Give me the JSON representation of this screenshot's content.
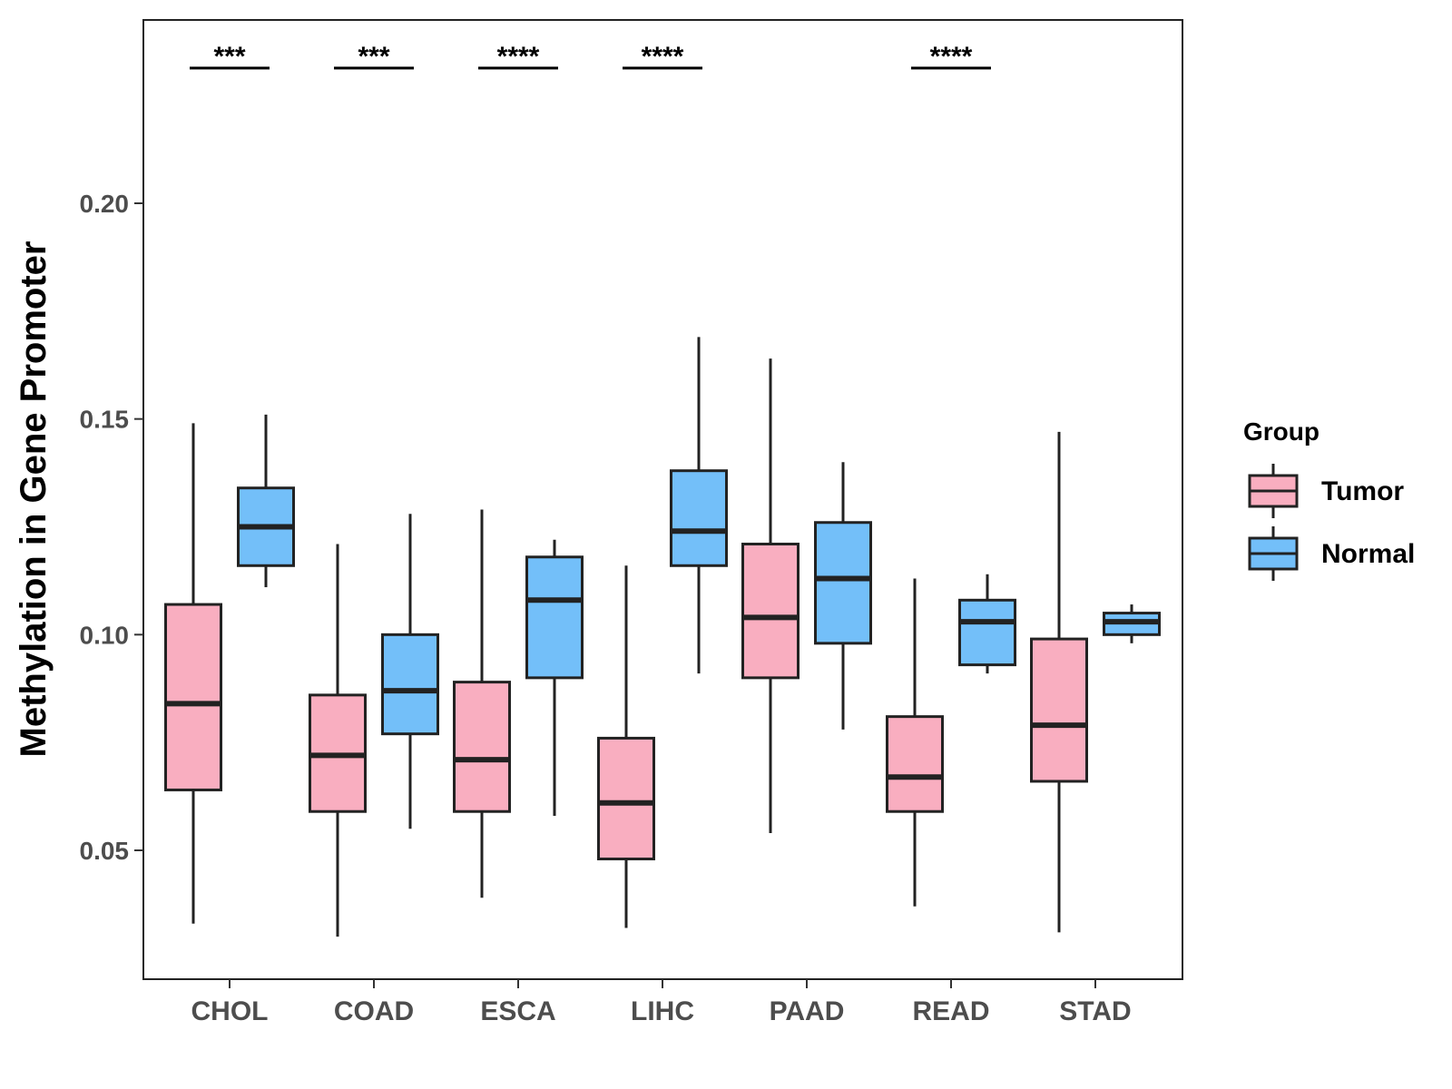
{
  "chart_data": {
    "type": "boxplot",
    "title": "",
    "xlabel": "",
    "ylabel": "Methylation in Gene Promoter",
    "ylim": [
      0.02,
      0.245
    ],
    "yticks": [
      0.05,
      0.1,
      0.15,
      0.2
    ],
    "ytick_labels": [
      "0.05",
      "0.10",
      "0.15",
      "0.20"
    ],
    "categories": [
      "CHOL",
      "COAD",
      "ESCA",
      "LIHC",
      "PAAD",
      "READ",
      "STAD"
    ],
    "legend": {
      "title": "Group",
      "position": "right",
      "entries": [
        {
          "name": "Tumor",
          "color": "#F9AEC0"
        },
        {
          "name": "Normal",
          "color": "#73BFF9"
        }
      ]
    },
    "series": [
      {
        "name": "Tumor",
        "color": "#F9AEC0",
        "boxes": [
          {
            "min": 0.033,
            "q1": 0.064,
            "median": 0.084,
            "q3": 0.107,
            "max": 0.149
          },
          {
            "min": 0.03,
            "q1": 0.059,
            "median": 0.072,
            "q3": 0.086,
            "max": 0.121
          },
          {
            "min": 0.039,
            "q1": 0.059,
            "median": 0.071,
            "q3": 0.089,
            "max": 0.129
          },
          {
            "min": 0.032,
            "q1": 0.048,
            "median": 0.061,
            "q3": 0.076,
            "max": 0.116
          },
          {
            "min": 0.054,
            "q1": 0.09,
            "median": 0.104,
            "q3": 0.121,
            "max": 0.164
          },
          {
            "min": 0.037,
            "q1": 0.059,
            "median": 0.067,
            "q3": 0.081,
            "max": 0.113
          },
          {
            "min": 0.031,
            "q1": 0.066,
            "median": 0.079,
            "q3": 0.099,
            "max": 0.147
          }
        ]
      },
      {
        "name": "Normal",
        "color": "#73BFF9",
        "boxes": [
          {
            "min": 0.111,
            "q1": 0.116,
            "median": 0.125,
            "q3": 0.134,
            "max": 0.151
          },
          {
            "min": 0.055,
            "q1": 0.077,
            "median": 0.087,
            "q3": 0.1,
            "max": 0.128
          },
          {
            "min": 0.058,
            "q1": 0.09,
            "median": 0.108,
            "q3": 0.118,
            "max": 0.122
          },
          {
            "min": 0.091,
            "q1": 0.116,
            "median": 0.124,
            "q3": 0.138,
            "max": 0.169
          },
          {
            "min": 0.078,
            "q1": 0.098,
            "median": 0.113,
            "q3": 0.126,
            "max": 0.14
          },
          {
            "min": 0.091,
            "q1": 0.093,
            "median": 0.103,
            "q3": 0.108,
            "max": 0.114
          },
          {
            "min": 0.098,
            "q1": 0.1,
            "median": 0.103,
            "q3": 0.105,
            "max": 0.107
          }
        ]
      }
    ],
    "significance": [
      {
        "category": "CHOL",
        "label": "***"
      },
      {
        "category": "COAD",
        "label": "***"
      },
      {
        "category": "ESCA",
        "label": "****"
      },
      {
        "category": "LIHC",
        "label": "****"
      },
      {
        "category": "READ",
        "label": "****"
      }
    ],
    "grid": false
  }
}
